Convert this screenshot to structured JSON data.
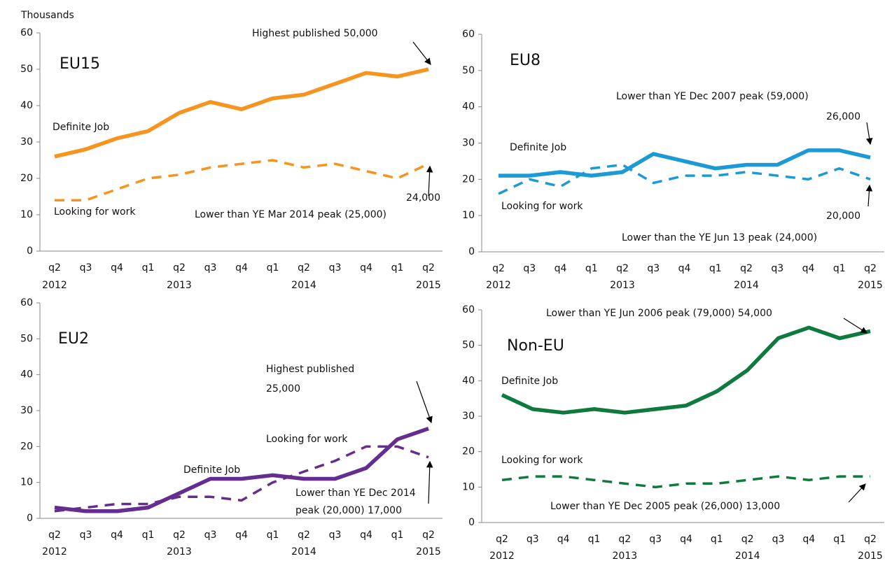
{
  "chart_data": [
    {
      "type": "line",
      "title": "EU15",
      "ylabel": "Thousands",
      "categories": [
        "q2",
        "q3",
        "q4",
        "q1",
        "q2",
        "q3",
        "q4",
        "q1",
        "q2",
        "q3",
        "q4",
        "q1",
        "q2"
      ],
      "category_years": [
        "2012",
        null,
        null,
        null,
        "2013",
        null,
        null,
        null,
        "2014",
        null,
        null,
        null,
        "2015"
      ],
      "series": [
        {
          "name": "Definite Job",
          "color": "#f7941d",
          "dash": false,
          "values": [
            26,
            28,
            31,
            33,
            38,
            41,
            39,
            42,
            43,
            46,
            49,
            48,
            50
          ]
        },
        {
          "name": "Looking for work",
          "color": "#f7941d",
          "dash": true,
          "values": [
            14,
            14,
            17,
            20,
            21,
            23,
            24,
            25,
            23,
            24,
            22,
            20,
            24
          ]
        }
      ],
      "annotations": [
        "Highest published  50,000",
        "24,000",
        "Lower than YE Mar 2014 peak (25,000)"
      ],
      "ylim": [
        0,
        60
      ],
      "yticks": [
        0,
        10,
        20,
        30,
        40,
        50,
        60
      ]
    },
    {
      "type": "line",
      "title": "EU8",
      "categories": [
        "q2",
        "q3",
        "q4",
        "q1",
        "q2",
        "q3",
        "q4",
        "q1",
        "q2",
        "q3",
        "q4",
        "q1",
        "q2"
      ],
      "category_years": [
        "2012",
        null,
        null,
        null,
        "2013",
        null,
        null,
        null,
        "2014",
        null,
        null,
        null,
        "2015"
      ],
      "series": [
        {
          "name": "Definite Job",
          "color": "#1b9ad6",
          "dash": false,
          "values": [
            21,
            21,
            22,
            21,
            22,
            27,
            25,
            23,
            24,
            24,
            28,
            28,
            26
          ]
        },
        {
          "name": "Looking for work",
          "color": "#1b9ad6",
          "dash": true,
          "values": [
            16,
            20,
            18,
            23,
            24,
            19,
            21,
            21,
            22,
            21,
            20,
            23,
            20
          ]
        }
      ],
      "annotations": [
        "Lower than YE Dec 2007 peak (59,000)",
        "26,000",
        "20,000",
        "Lower than the YE Jun 13 peak (24,000)"
      ],
      "ylim": [
        0,
        60
      ],
      "yticks": [
        0,
        10,
        20,
        30,
        40,
        50,
        60
      ]
    },
    {
      "type": "line",
      "title": "EU2",
      "categories": [
        "q2",
        "q3",
        "q4",
        "q1",
        "q2",
        "q3",
        "q4",
        "q1",
        "q2",
        "q3",
        "q4",
        "q1",
        "q2"
      ],
      "category_years": [
        "2012",
        null,
        null,
        null,
        "2013",
        null,
        null,
        null,
        "2014",
        null,
        null,
        null,
        "2015"
      ],
      "series": [
        {
          "name": "Definite Job",
          "color": "#662d91",
          "dash": false,
          "values": [
            3,
            2,
            2,
            3,
            7,
            11,
            11,
            12,
            11,
            11,
            14,
            22,
            25
          ]
        },
        {
          "name": "Looking for work",
          "color": "#662d91",
          "dash": true,
          "values": [
            2,
            3,
            4,
            4,
            6,
            6,
            5,
            10,
            13,
            16,
            20,
            20,
            17
          ]
        }
      ],
      "annotations": [
        "Highest published",
        "25,000",
        "Lower than YE Dec 2014",
        "peak (20,000)  17,000"
      ],
      "ylim": [
        0,
        60
      ],
      "yticks": [
        0,
        10,
        20,
        30,
        40,
        50,
        60
      ]
    },
    {
      "type": "line",
      "title": "Non-EU",
      "categories": [
        "q2",
        "q3",
        "q4",
        "q1",
        "q2",
        "q3",
        "q4",
        "q1",
        "q2",
        "q3",
        "q4",
        "q1",
        "q2"
      ],
      "category_years": [
        "2012",
        null,
        null,
        null,
        "2013",
        null,
        null,
        null,
        "2014",
        null,
        null,
        null,
        "2015"
      ],
      "series": [
        {
          "name": "Definite Job",
          "color": "#0e7a3d",
          "dash": false,
          "values": [
            36,
            32,
            31,
            32,
            31,
            32,
            33,
            37,
            43,
            52,
            55,
            52,
            54
          ]
        },
        {
          "name": "Looking for work",
          "color": "#0e7a3d",
          "dash": true,
          "values": [
            12,
            13,
            13,
            12,
            11,
            10,
            11,
            11,
            12,
            13,
            12,
            13,
            13
          ]
        }
      ],
      "annotations": [
        "Lower than YE Jun 2006 peak (79,000)  54,000",
        "Lower than YE Dec 2005 peak (26,000)  13,000"
      ],
      "ylim": [
        0,
        60
      ],
      "yticks": [
        0,
        10,
        20,
        30,
        40,
        50,
        60
      ]
    }
  ]
}
